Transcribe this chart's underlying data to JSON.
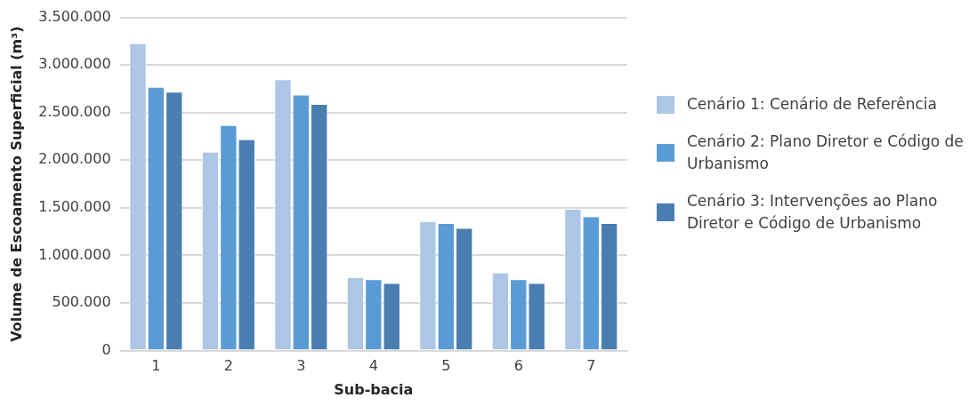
{
  "chart_data": {
    "type": "bar",
    "xlabel": "Sub-bacia",
    "ylabel": "Volume de Escoamento Superficial (m³)",
    "categories": [
      "1",
      "2",
      "3",
      "4",
      "5",
      "6",
      "7"
    ],
    "series": [
      {
        "name": "Cenário 1: Cenário de Referência",
        "color": "#adc6e5",
        "values": [
          3230000,
          2090000,
          2850000,
          770000,
          1360000,
          820000,
          1490000
        ]
      },
      {
        "name": "Cenário 2: Plano Diretor e Código de Urbanismo",
        "color": "#5b9bd5",
        "values": [
          2770000,
          2370000,
          2690000,
          750000,
          1340000,
          750000,
          1410000
        ]
      },
      {
        "name": "Cenário 3: Intervenções ao Plano Diretor e Código de Urbanismo",
        "color": "#4a7eb0",
        "values": [
          2720000,
          2220000,
          2590000,
          710000,
          1290000,
          710000,
          1340000
        ]
      }
    ],
    "ylim": [
      0,
      3500000
    ],
    "yticks": [
      0,
      {
        "value": 500000,
        "label": "500.000"
      },
      {
        "value": 1000000,
        "label": "1.000.000"
      },
      {
        "value": 1500000,
        "label": "1.500.000"
      },
      {
        "value": 2000000,
        "label": "2.000.000"
      },
      {
        "value": 2500000,
        "label": "2.500.000"
      },
      {
        "value": 3000000,
        "label": "3.000.000"
      },
      {
        "value": 3500000,
        "label": "3.500.000"
      }
    ],
    "grid": "y",
    "legend": "right"
  }
}
